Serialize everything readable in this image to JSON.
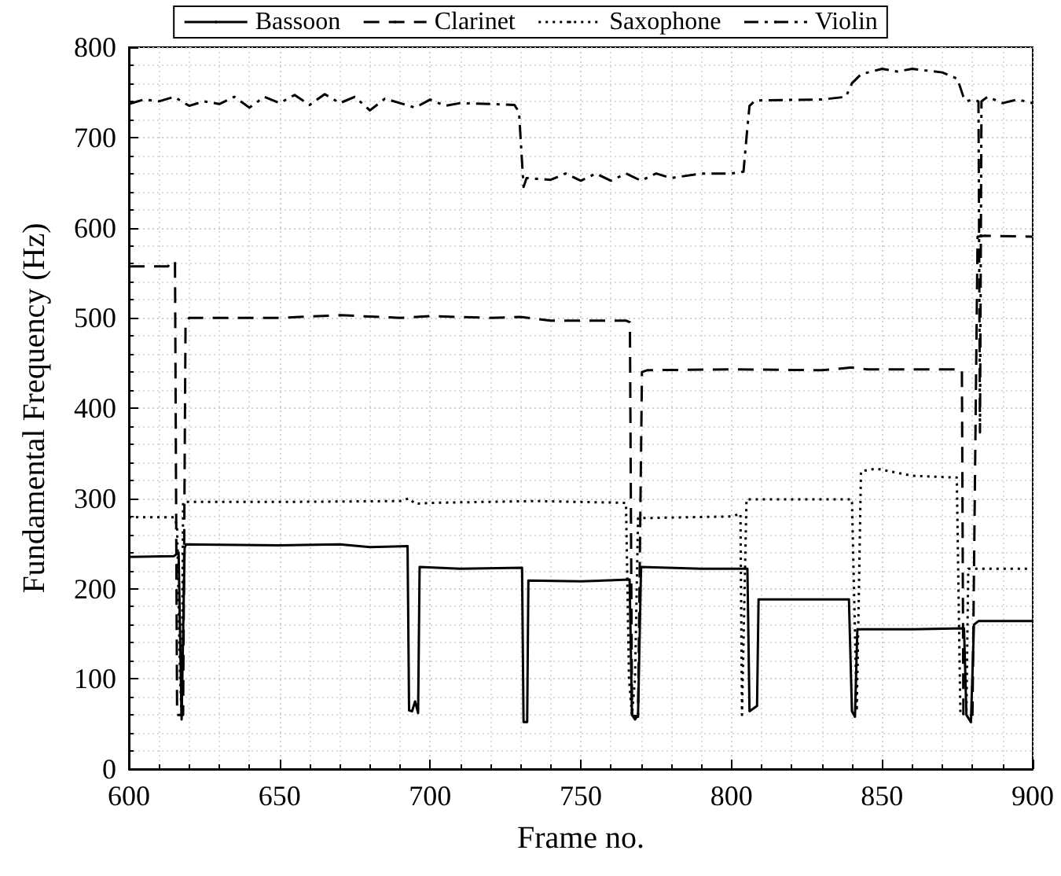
{
  "chart_data": {
    "type": "line",
    "xlabel": "Frame no.",
    "ylabel": "Fundamental Frequency (Hz)",
    "xlim": [
      600,
      900
    ],
    "xticks": [
      600,
      650,
      700,
      750,
      800,
      850,
      900
    ],
    "ylim": [
      0,
      800
    ],
    "yticks": [
      0,
      100,
      200,
      300,
      400,
      500,
      600,
      700,
      800
    ],
    "grid": true,
    "legend": "top",
    "marker": "none",
    "series": [
      {
        "name": "Bassoon",
        "color": "#000000",
        "line_style": "solid",
        "x": [
          600,
          615,
          616.5,
          617.5,
          618.5,
          619,
          650,
          670,
          680,
          692.5,
          693,
          694,
          695,
          696,
          696.5,
          710,
          730.5,
          731,
          732.2,
          732.6,
          750,
          766.2,
          767,
          768,
          769,
          770,
          790,
          805.3,
          806,
          808.5,
          809,
          839,
          840,
          841,
          841.8,
          860,
          877.2,
          878,
          879.5,
          880.5,
          882,
          900
        ],
        "values": [
          235,
          236,
          240,
          55,
          245,
          249,
          248,
          249,
          246,
          247,
          65,
          64,
          75,
          62,
          224,
          222,
          223,
          52,
          52,
          209,
          208,
          210,
          60,
          55,
          60,
          224,
          222,
          222,
          64,
          70,
          188,
          188,
          64,
          58,
          155,
          155,
          156,
          60,
          52,
          160,
          164,
          164
        ]
      },
      {
        "name": "Clarinet",
        "color": "#000000",
        "line_style": "dashed",
        "x": [
          600,
          613,
          614,
          615.3,
          616,
          618,
          618.8,
          620,
          650,
          670,
          690,
          700,
          720,
          730,
          740,
          765,
          766.3,
          767,
          769,
          770.3,
          772,
          800,
          830,
          840,
          845,
          876.5,
          877,
          880,
          881.7,
          884,
          900
        ],
        "values": [
          557,
          557,
          563,
          563,
          60,
          60,
          495,
          500,
          500,
          503,
          500,
          502,
          500,
          501,
          497,
          497,
          495,
          60,
          58,
          440,
          442,
          443,
          442,
          445,
          443,
          443,
          58,
          60,
          590,
          591,
          590
        ]
      },
      {
        "name": "Saxophone",
        "color": "#000000",
        "line_style": "dotted",
        "x": [
          600,
          615,
          616,
          617,
          617.5,
          618,
          650,
          690,
          693,
          695,
          700,
          735,
          765,
          766,
          767,
          768,
          769,
          800,
          803,
          803.5,
          805,
          840,
          841.6,
          843,
          848,
          860,
          874.8,
          876,
          878,
          878.6,
          900
        ],
        "values": [
          279,
          279,
          270,
          100,
          60,
          296,
          296,
          297,
          300,
          294,
          295,
          297,
          295,
          100,
          60,
          100,
          278,
          280,
          283,
          60,
          299,
          299,
          64,
          330,
          333,
          325,
          323,
          60,
          62,
          222,
          222
        ]
      },
      {
        "name": "Violin",
        "color": "#000000",
        "line_style": "dashdot",
        "x": [
          600,
          605,
          610,
          615,
          620,
          625,
          630,
          635,
          640,
          645,
          650,
          655,
          660,
          665,
          670,
          675,
          680,
          685,
          690,
          695,
          700,
          705,
          710,
          720,
          728,
          729.5,
          730,
          731,
          732,
          740,
          745,
          750,
          755,
          760,
          765,
          770,
          775,
          780,
          790,
          800,
          804,
          805,
          806,
          808,
          830,
          838,
          840,
          843,
          850,
          855,
          860,
          870,
          875,
          877,
          878,
          880,
          882,
          882.5,
          883,
          885,
          890,
          895,
          900
        ],
        "values": [
          737,
          742,
          740,
          745,
          735,
          740,
          737,
          745,
          733,
          745,
          738,
          747,
          736,
          748,
          738,
          745,
          730,
          743,
          738,
          733,
          742,
          735,
          738,
          737,
          736,
          728,
          700,
          645,
          655,
          653,
          660,
          652,
          660,
          652,
          660,
          652,
          660,
          655,
          660,
          660,
          662,
          700,
          735,
          741,
          742,
          745,
          760,
          770,
          776,
          773,
          776,
          772,
          765,
          745,
          740,
          742,
          740,
          373,
          740,
          745,
          738,
          742,
          738
        ]
      }
    ]
  }
}
